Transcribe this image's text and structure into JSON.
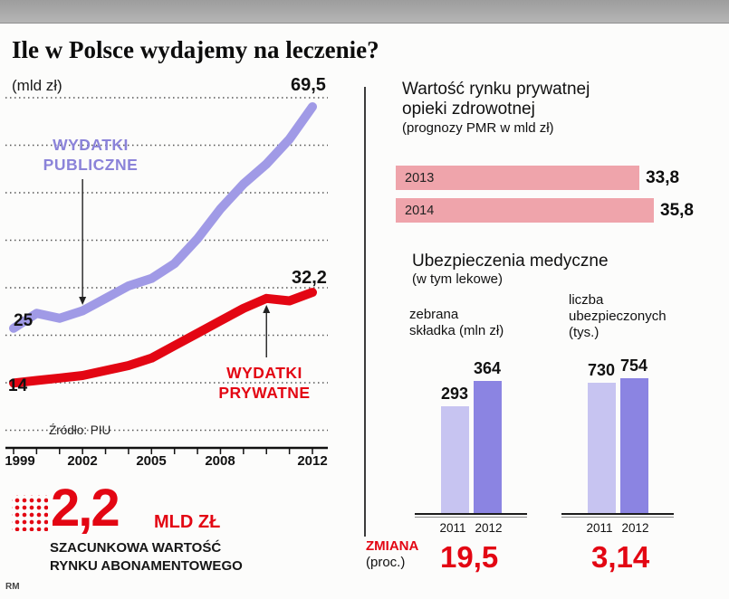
{
  "title": "Ile w Polsce wydajemy na leczenie?",
  "credit": "RM",
  "line_chart": {
    "unit_label": "(mld zł)",
    "source": "Źródło: PIU",
    "public_label_line1": "WYDATKI",
    "public_label_line2": "PUBLICZNE",
    "private_label_line1": "WYDATKI",
    "private_label_line2": "PRYWATNE",
    "start_public": "25",
    "start_private": "14",
    "end_public": "69,5",
    "end_private": "32,2",
    "x_ticks": [
      "1999",
      "2002",
      "2005",
      "2008",
      "2012"
    ]
  },
  "pmr": {
    "title_line1": "Wartość rynku prywatnej",
    "title_line2": "opieki zdrowotnej",
    "subtitle": "(prognozy PMR w mld zł)",
    "bars": [
      {
        "year": "2013",
        "value_label": "33,8"
      },
      {
        "year": "2014",
        "value_label": "35,8"
      }
    ]
  },
  "insurance": {
    "title": "Ubezpieczenia medyczne",
    "subtitle": "(w tym lekowe)",
    "left_label_line1": "zebrana",
    "left_label_line2": "składka (mln zł)",
    "right_label_line1": "liczba",
    "right_label_line2": "ubezpieczonych",
    "right_label_line3": "(tys.)",
    "years": [
      "2011",
      "2012"
    ],
    "skladka_values": [
      "293",
      "364"
    ],
    "liczba_values": [
      "730",
      "754"
    ],
    "zmiana_label": "ZMIANA",
    "zmiana_sub": "(proc.)",
    "zmiana_skladka": "19,5",
    "zmiana_liczba": "3,14"
  },
  "abonament": {
    "value": "2,2",
    "unit": "MLD ZŁ",
    "desc_line1": "SZACUNKOWA WARTOŚĆ",
    "desc_line2": "RYNKU ABONAMENTOWEGO"
  },
  "colors": {
    "public_line": "#a09ae6",
    "private_line": "#e30613",
    "pink_bar": "#efa4ab",
    "bar_2011": "#c7c4f1",
    "bar_2012": "#8b84e2",
    "accent_red": "#e30613"
  },
  "chart_data": [
    {
      "type": "line",
      "title": "Wydatki na leczenie w Polsce (mld zł)",
      "ylabel": "mld zł",
      "source": "PIU",
      "x": [
        1999,
        2000,
        2001,
        2002,
        2003,
        2004,
        2005,
        2006,
        2007,
        2008,
        2009,
        2010,
        2011,
        2012
      ],
      "x_tick_labels": [
        "1999",
        "2002",
        "2005",
        "2008",
        "2012"
      ],
      "series": [
        {
          "name": "Wydatki publiczne",
          "color": "#a09ae6",
          "values": [
            25,
            28,
            27,
            28.5,
            31,
            33.5,
            35,
            38,
            43,
            49,
            54,
            58,
            63,
            69.5
          ]
        },
        {
          "name": "Wydatki prywatne",
          "color": "#e30613",
          "values": [
            14,
            14.5,
            15,
            15.5,
            16.5,
            17.5,
            19,
            21.5,
            24,
            26.5,
            29,
            31,
            30.5,
            32.2
          ]
        }
      ],
      "labeled_points": {
        "public_1999": 25,
        "public_2012": 69.5,
        "private_1999": 14,
        "private_2012": 32.2
      },
      "grid": "dotted-horizontal"
    },
    {
      "type": "bar",
      "orientation": "horizontal",
      "title": "Wartość rynku prywatnej opieki zdrowotnej (prognozy PMR w mld zł)",
      "categories": [
        "2013",
        "2014"
      ],
      "values": [
        33.8,
        35.8
      ]
    },
    {
      "type": "bar",
      "title": "Ubezpieczenia medyczne – zebrana składka (mln zł)",
      "categories": [
        "2011",
        "2012"
      ],
      "values": [
        293,
        364
      ],
      "change_percent": 19.5
    },
    {
      "type": "bar",
      "title": "Ubezpieczenia medyczne – liczba ubezpieczonych (tys.)",
      "categories": [
        "2011",
        "2012"
      ],
      "values": [
        730,
        754
      ],
      "change_percent": 3.14
    }
  ]
}
